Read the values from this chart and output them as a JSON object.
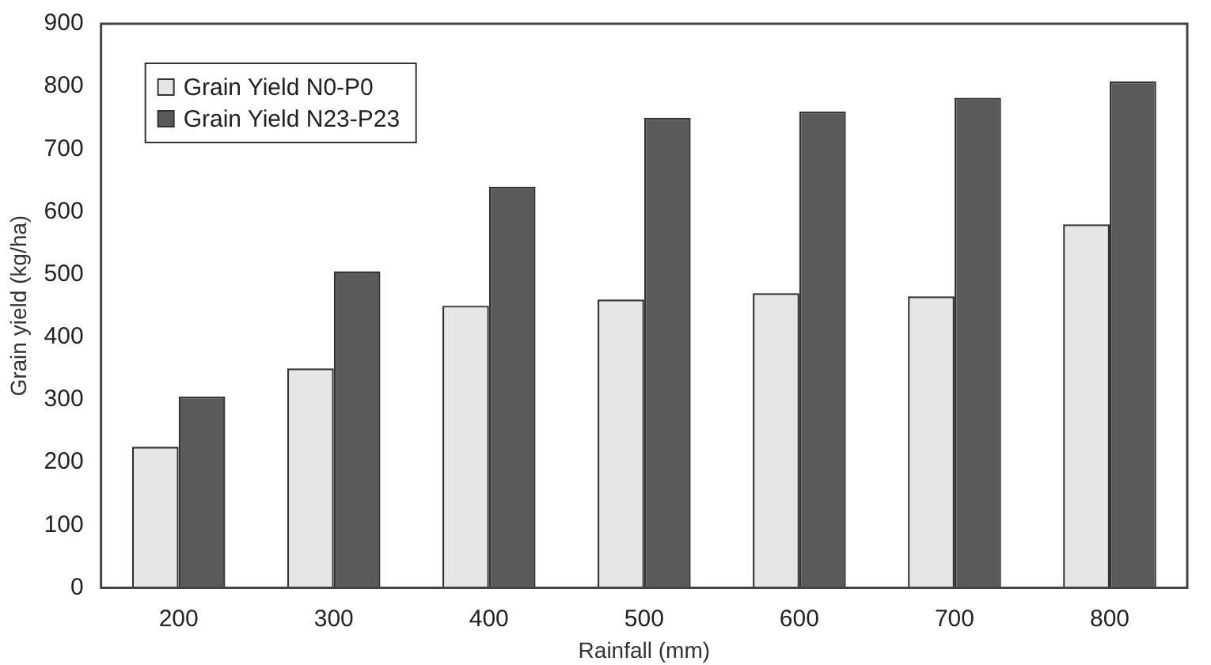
{
  "chart_data": {
    "type": "bar",
    "xlabel": "Rainfall (mm)",
    "ylabel": "Grain yield (kg/ha)",
    "categories": [
      "200",
      "300",
      "400",
      "500",
      "600",
      "700",
      "800"
    ],
    "series": [
      {
        "name": "Grain Yield N0-P0",
        "color": "#e6e6e6",
        "values": [
          225,
          350,
          450,
          460,
          470,
          465,
          580
        ]
      },
      {
        "name": "Grain Yield N23-P23",
        "color": "#5a5a5a",
        "values": [
          305,
          505,
          640,
          750,
          760,
          782,
          808
        ]
      }
    ],
    "ylim": [
      0,
      900
    ],
    "yticks": [
      0,
      100,
      200,
      300,
      400,
      500,
      600,
      700,
      800,
      900
    ],
    "grid": false,
    "legend": "top left"
  }
}
